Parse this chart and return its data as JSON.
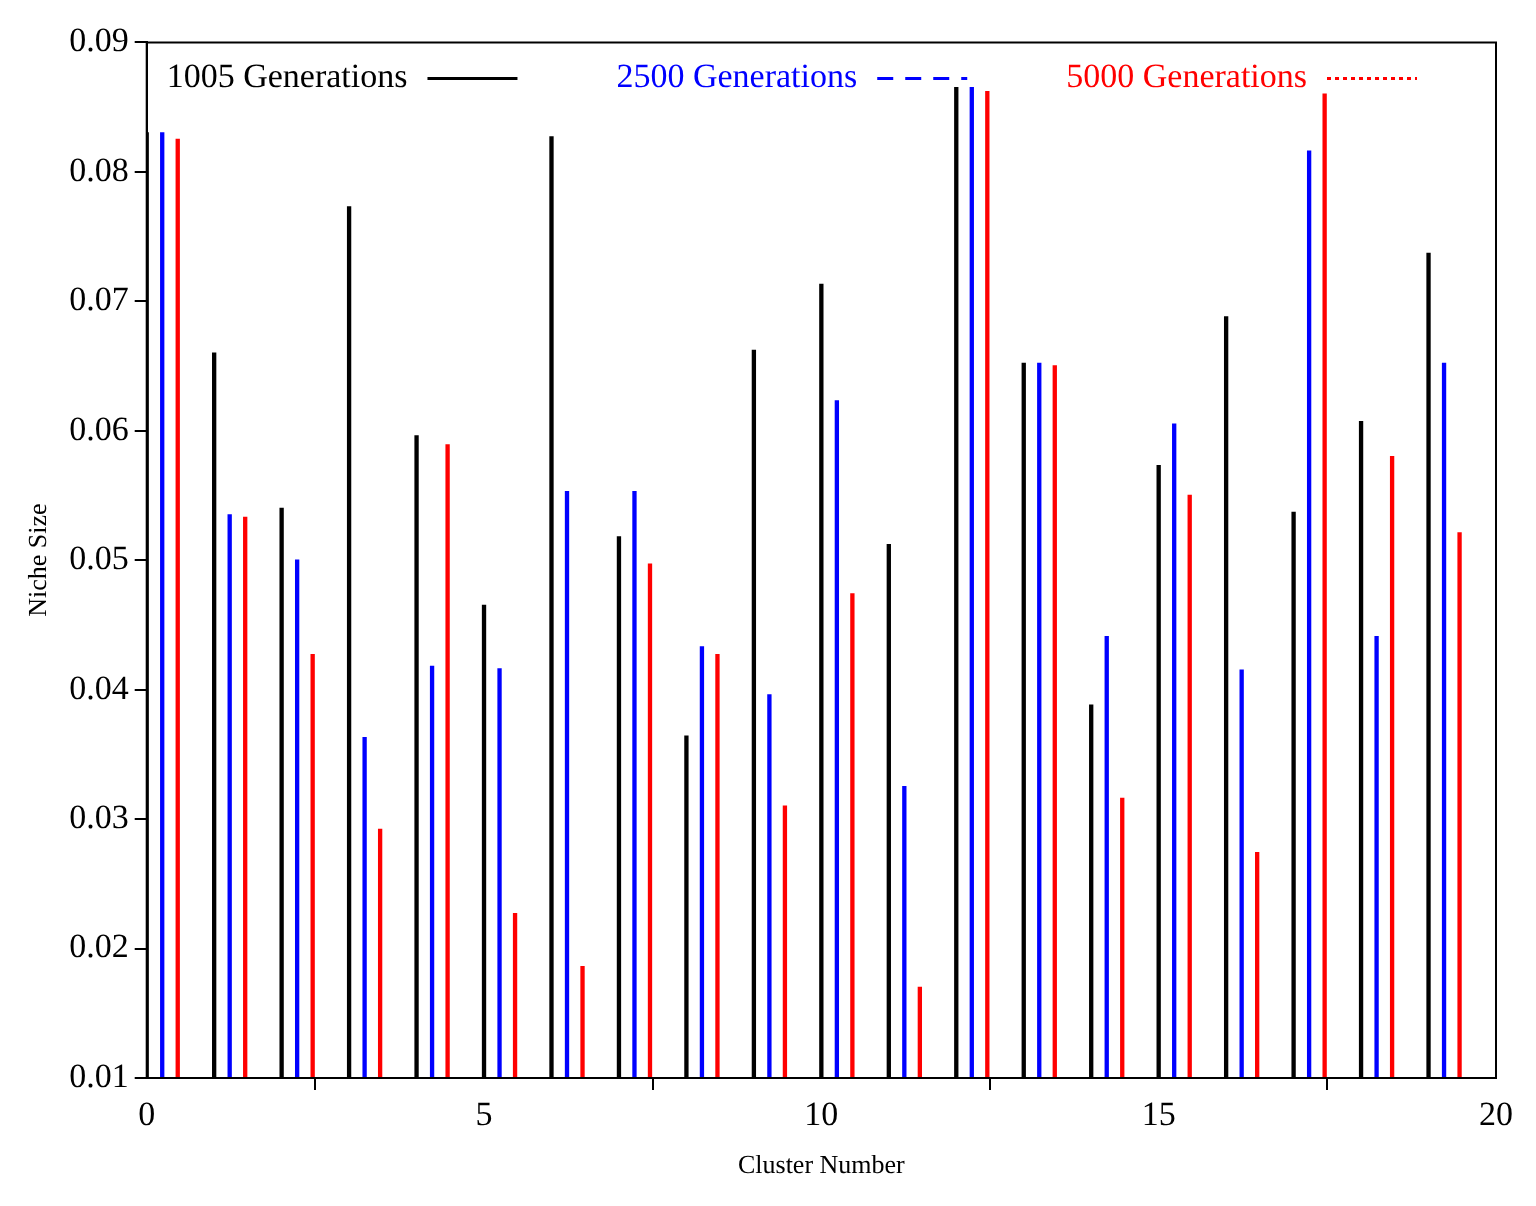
{
  "chart_data": {
    "type": "bar",
    "xlabel": "Cluster Number",
    "ylabel": "Niche Size",
    "xlim": [
      0,
      20
    ],
    "xticks": [
      0,
      5,
      10,
      15,
      20
    ],
    "ylim": [
      0.01,
      0.09
    ],
    "yticks": [
      0.01,
      0.02,
      0.03,
      0.04,
      0.05,
      0.06,
      0.07,
      0.08,
      0.09
    ],
    "grid": false,
    "legend": "top",
    "series": [
      {
        "name": "1005 Generations",
        "color": "#000000",
        "x": [
          0,
          1,
          2,
          3,
          4,
          5,
          6,
          7,
          8,
          9,
          10,
          11,
          12,
          13,
          14,
          15,
          16,
          17,
          18,
          19
        ],
        "values": [
          0.083,
          0.066,
          0.054,
          0.0773,
          0.0596,
          0.0465,
          0.0827,
          0.0518,
          0.0364,
          0.0662,
          0.0713,
          0.0512,
          0.0865,
          0.0652,
          0.0388,
          0.0573,
          0.0688,
          0.0537,
          0.0607,
          0.0737
        ]
      },
      {
        "name": "2500 Generations",
        "color": "#0000ff",
        "x": [
          0.23,
          1.23,
          2.23,
          3.23,
          4.23,
          5.23,
          6.23,
          7.23,
          8.23,
          9.23,
          10.23,
          11.23,
          12.23,
          13.23,
          14.23,
          15.23,
          16.23,
          17.23,
          18.23,
          19.23
        ],
        "values": [
          0.083,
          0.0535,
          0.05,
          0.0363,
          0.0418,
          0.0416,
          0.0553,
          0.0553,
          0.0433,
          0.0396,
          0.0623,
          0.0325,
          0.0865,
          0.0652,
          0.0441,
          0.0605,
          0.0415,
          0.0816,
          0.0441,
          0.0652
        ]
      },
      {
        "name": "5000 Generations",
        "color": "#ff0000",
        "x": [
          0.46,
          1.46,
          2.46,
          3.46,
          4.46,
          5.46,
          6.46,
          7.46,
          8.46,
          9.46,
          10.46,
          11.46,
          12.46,
          13.46,
          14.46,
          15.46,
          16.46,
          17.46,
          18.46,
          19.46
        ],
        "values": [
          0.0825,
          0.0533,
          0.0427,
          0.0292,
          0.0589,
          0.0227,
          0.0186,
          0.0497,
          0.0427,
          0.031,
          0.0474,
          0.017,
          0.0862,
          0.065,
          0.0316,
          0.055,
          0.0274,
          0.086,
          0.058,
          0.0521
        ]
      }
    ]
  }
}
